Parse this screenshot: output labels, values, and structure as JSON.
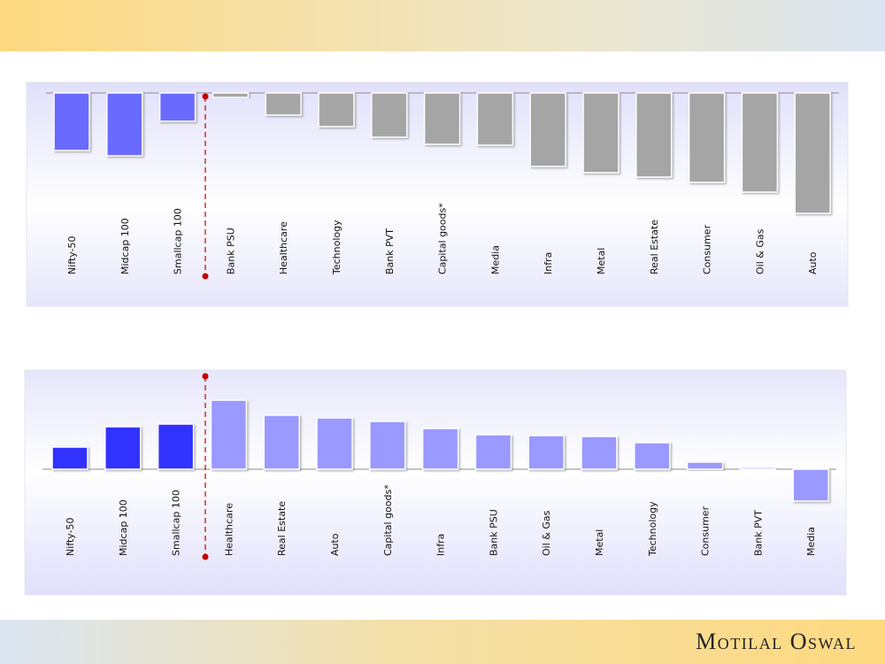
{
  "brand": "Motilal Oswal",
  "colors": {
    "index_top": "#6a6aff",
    "sector_top": "#a5a5a5",
    "index_bottom": "#3333ff",
    "sector_bottom": "#9999ff",
    "divider": "#c00000"
  },
  "chart_data": [
    {
      "type": "bar",
      "title": "",
      "note": "relative values estimated; no axis printed",
      "categories": [
        "Nifty-50",
        "Midcap 100",
        "Smallcap 100",
        "Bank PSU",
        "Healthcare",
        "Technology",
        "Bank PVT",
        "Capital goods*",
        "Media",
        "Infra",
        "Metal",
        "Real Estate",
        "Consumer",
        "Oil & Gas",
        "Auto"
      ],
      "values": [
        -65,
        -71,
        -32,
        -5,
        -25,
        -38,
        -50,
        -58,
        -59,
        -83,
        -90,
        -95,
        -101,
        -112,
        -136
      ],
      "index_count": 3,
      "ylim": [
        -150,
        0
      ]
    },
    {
      "type": "bar",
      "title": "",
      "note": "relative values estimated; no axis printed",
      "categories": [
        "Nifty-50",
        "Midcap 100",
        "Smallcap 100",
        "Healthcare",
        "Real Estate",
        "Auto",
        "Capital goods*",
        "Infra",
        "Bank PSU",
        "Oil & Gas",
        "Metal",
        "Technology",
        "Consumer",
        "Bank PVT",
        "Media"
      ],
      "values": [
        25,
        48,
        51,
        78,
        61,
        58,
        54,
        46,
        39,
        38,
        37,
        30,
        8,
        2,
        -36
      ],
      "index_count": 3,
      "ylim": [
        -50,
        100
      ]
    }
  ]
}
